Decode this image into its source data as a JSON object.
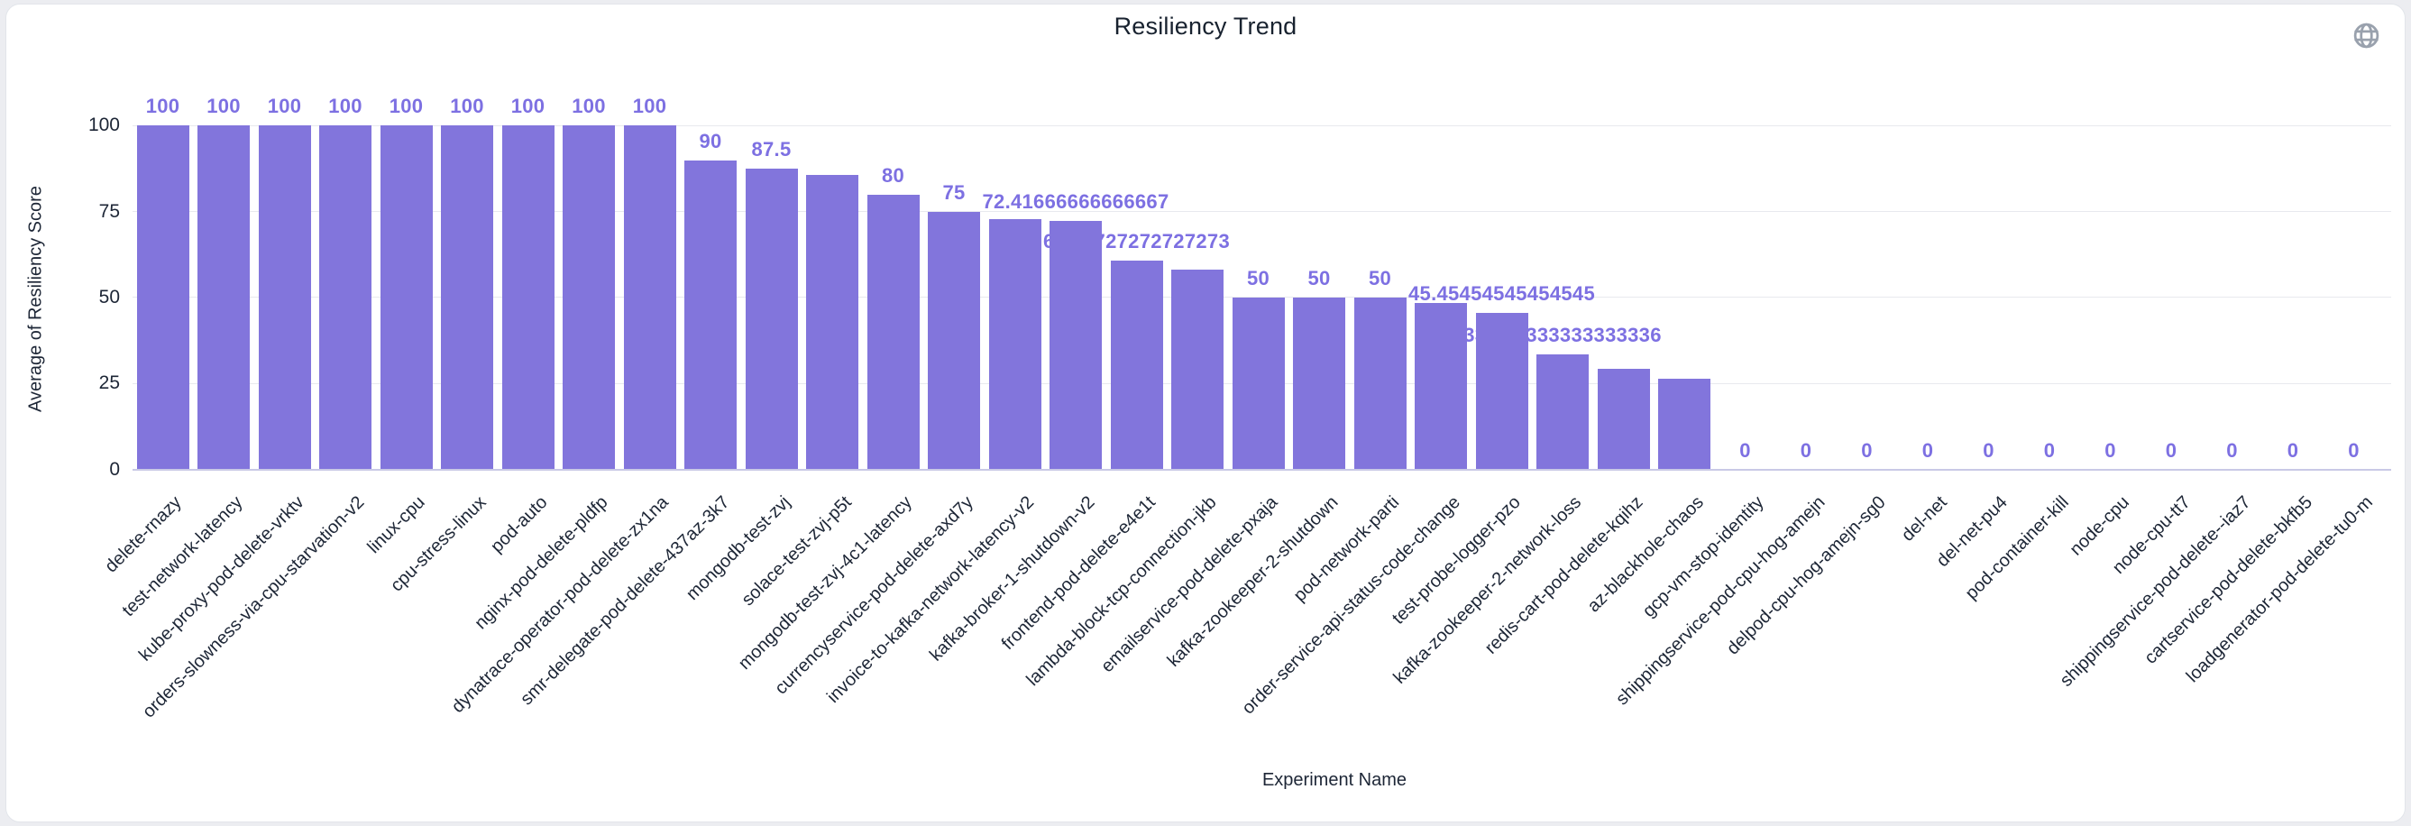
{
  "header": {
    "title": "Resiliency Trend",
    "globe_icon": "globe-icon",
    "globe_color": "#99a1ad"
  },
  "chart_data": {
    "type": "bar",
    "title": "Resiliency Trend",
    "xlabel": "Experiment Name",
    "ylabel": "Average of Resiliency Score",
    "ylim": [
      0,
      100
    ],
    "yticks": [
      0,
      25,
      50,
      75,
      100
    ],
    "grid": true,
    "legend": "none",
    "bar_color": "#8275dc",
    "value_label_color": "#7d70e2",
    "axis_text_color": "#1d2636",
    "points": [
      {
        "category": "delete-rnazy",
        "value": 100,
        "label": "100"
      },
      {
        "category": "test-network-latency",
        "value": 100,
        "label": "100"
      },
      {
        "category": "kube-proxy-pod-delete-vrktv",
        "value": 100,
        "label": "100"
      },
      {
        "category": "orders-slowness-via-cpu-starvation-v2",
        "value": 100,
        "label": "100"
      },
      {
        "category": "linux-cpu",
        "value": 100,
        "label": "100"
      },
      {
        "category": "cpu-stress-linux",
        "value": 100,
        "label": "100"
      },
      {
        "category": "pod-auto",
        "value": 100,
        "label": "100"
      },
      {
        "category": "nginx-pod-delete-pldfp",
        "value": 100,
        "label": "100"
      },
      {
        "category": "dynatrace-operator-pod-delete-zx1na",
        "value": 100,
        "label": "100"
      },
      {
        "category": "smr-delegate-pod-delete-437az-3k7",
        "value": 90,
        "label": "90"
      },
      {
        "category": "mongodb-test-zvj",
        "value": 87.5,
        "label": "87.5"
      },
      {
        "category": "solace-test-zvj-p5t",
        "value": 85.8,
        "label": ""
      },
      {
        "category": "mongodb-test-zvj-4c1-latency",
        "value": 80,
        "label": "80"
      },
      {
        "category": "currencyservice-pod-delete-axd7y",
        "value": 75,
        "label": "75"
      },
      {
        "category": "invoice-to-kafka-network-latency-v2",
        "value": 72.7,
        "label": ""
      },
      {
        "category": "kafka-broker-1-shutdown-v2",
        "value": 72.41666666666667,
        "label": "72.41666666666667"
      },
      {
        "category": "frontend-pod-delete-e4e1t",
        "value": 60.72727272727273,
        "label": "60.72727272727273"
      },
      {
        "category": "lambda-block-tcp-connection-jkb",
        "value": 58,
        "label": ""
      },
      {
        "category": "emailservice-pod-delete-pxaja",
        "value": 50,
        "label": "50"
      },
      {
        "category": "kafka-zookeeper-2-shutdown",
        "value": 50,
        "label": "50"
      },
      {
        "category": "pod-network-parti",
        "value": 50,
        "label": "50"
      },
      {
        "category": "order-service-api-status-code-change",
        "value": 48.5,
        "label": ""
      },
      {
        "category": "test-probe-logger-pzo",
        "value": 45.45454545454545,
        "label": "45.45454545454545"
      },
      {
        "category": "kafka-zookeeper-2-network-loss",
        "value": 33.333333333333336,
        "label": "33.333333333333336"
      },
      {
        "category": "redis-cart-pod-delete-kqihz",
        "value": 29.2,
        "label": ""
      },
      {
        "category": "az-blackhole-chaos",
        "value": 26.5,
        "label": ""
      },
      {
        "category": "gcp-vm-stop-identity",
        "value": 0,
        "label": "0"
      },
      {
        "category": "shippingservice-pod-cpu-hog-amejn",
        "value": 0,
        "label": "0"
      },
      {
        "category": "delpod-cpu-hog-amejn-sg0",
        "value": 0,
        "label": "0"
      },
      {
        "category": "del-net",
        "value": 0,
        "label": "0"
      },
      {
        "category": "del-net-pu4",
        "value": 0,
        "label": "0"
      },
      {
        "category": "pod-container-kill",
        "value": 0,
        "label": "0"
      },
      {
        "category": "node-cpu",
        "value": 0,
        "label": "0"
      },
      {
        "category": "node-cpu-tt7",
        "value": 0,
        "label": "0"
      },
      {
        "category": "shippingservice-pod-delete--iaz7",
        "value": 0,
        "label": "0"
      },
      {
        "category": "cartservice-pod-delete-bkfb5",
        "value": 0,
        "label": "0"
      },
      {
        "category": "loadgenerator-pod-delete-tu0-m",
        "value": 0,
        "label": "0"
      }
    ]
  }
}
